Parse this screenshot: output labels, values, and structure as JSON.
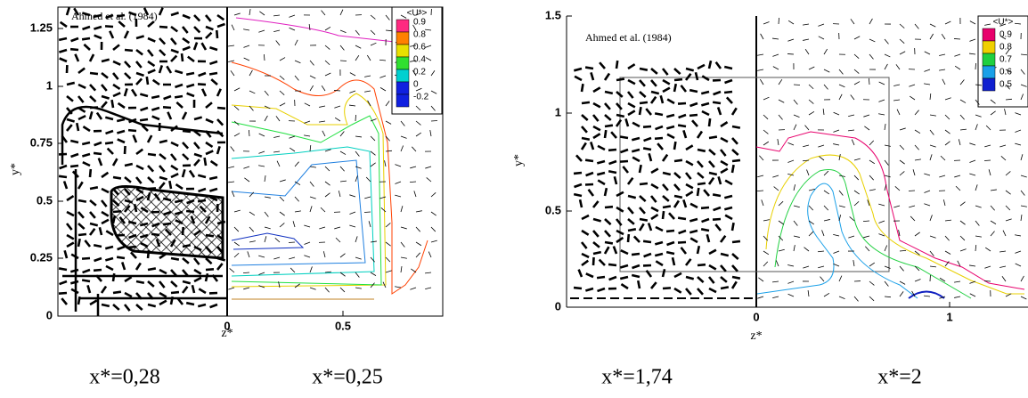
{
  "panels": [
    {
      "reference": "Ahmed et al. (1984)",
      "y_label": "y*",
      "x_label": "z*",
      "y_ticks": [
        "0",
        "0.25",
        "0.5",
        "0.75",
        "1",
        "1.25"
      ],
      "x_ticks": [
        "0",
        "0.5"
      ],
      "legend_title": "<U*>",
      "legend": [
        "0.9",
        "0.8",
        "0.6",
        "0.4",
        "0.2",
        "0",
        "-0.2"
      ],
      "captions": [
        "x*=0,28",
        "x*=0,25"
      ]
    },
    {
      "reference": "Ahmed et al. (1984)",
      "y_label": "y*",
      "x_label": "z*",
      "y_ticks": [
        "0",
        "0.5",
        "1",
        "1.5"
      ],
      "x_ticks": [
        "0",
        "1"
      ],
      "legend_title": "<U*>",
      "legend": [
        "0.9",
        "0.8",
        "0.7",
        "0.6",
        "0.5"
      ],
      "captions": [
        "x*=1,74",
        "x*=2"
      ]
    }
  ]
}
